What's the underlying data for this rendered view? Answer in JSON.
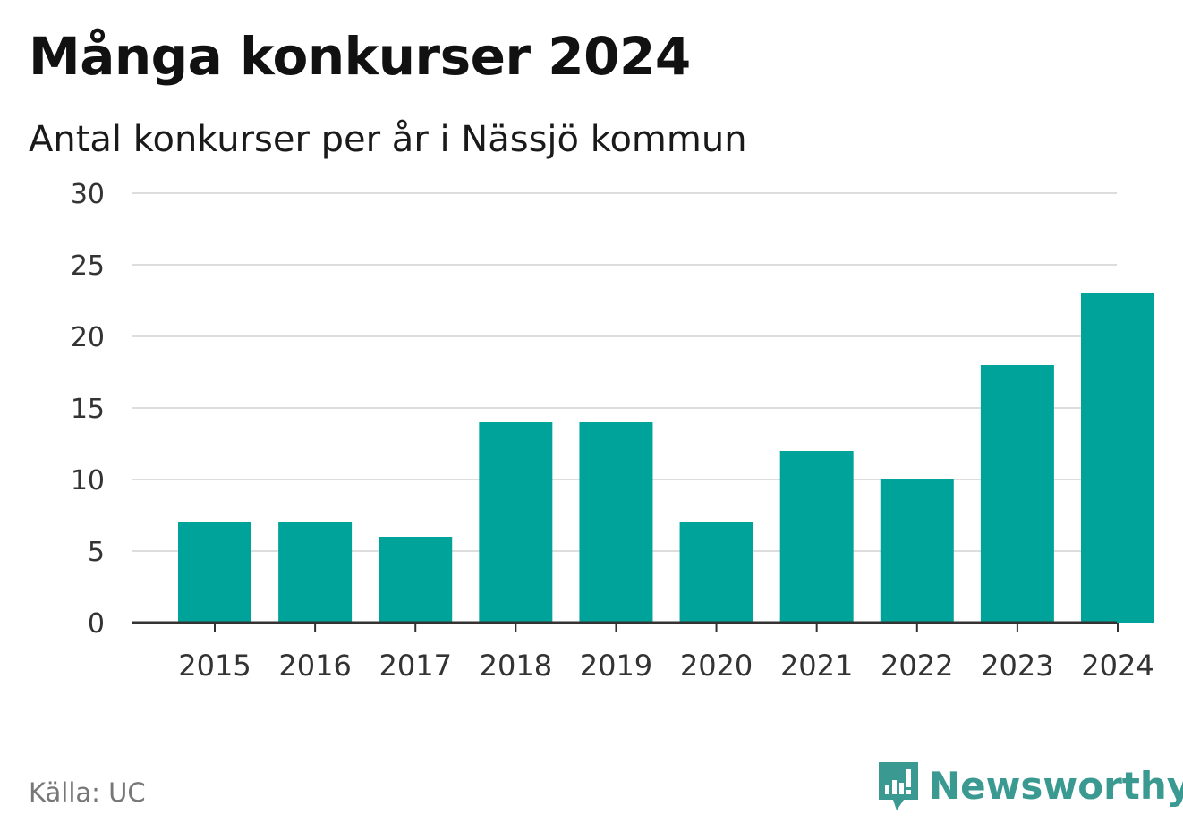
{
  "header": {
    "title": "Många konkurser 2024",
    "subtitle": "Antal konkurser per år i Nässjö kommun"
  },
  "footer": {
    "source": "Källa: UC",
    "brand": "Newsworthy"
  },
  "colors": {
    "bar": "#00A39A",
    "grid": "#dddddd",
    "axis": "#333333",
    "brand": "#3a9a91"
  },
  "chart_data": {
    "type": "bar",
    "categories": [
      "2015",
      "2016",
      "2017",
      "2018",
      "2019",
      "2020",
      "2021",
      "2022",
      "2023",
      "2024"
    ],
    "values": [
      7,
      7,
      6,
      14,
      14,
      7,
      12,
      10,
      18,
      23
    ],
    "title": "Många konkurser 2024",
    "subtitle": "Antal konkurser per år i Nässjö kommun",
    "xlabel": "",
    "ylabel": "",
    "ylim": [
      0,
      30
    ],
    "yticks": [
      0,
      5,
      10,
      15,
      20,
      25,
      30
    ],
    "grid": true,
    "legend": "none"
  }
}
